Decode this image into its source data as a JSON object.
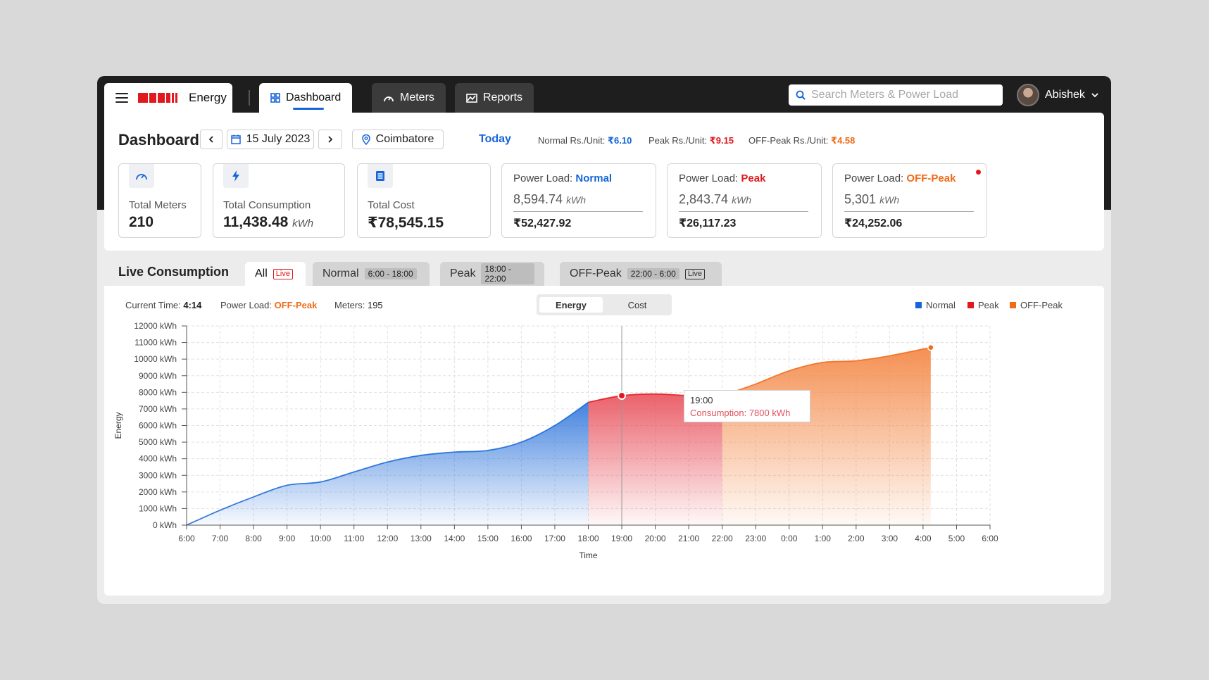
{
  "app": {
    "brand": "Energy"
  },
  "nav": {
    "tabs": [
      {
        "label": "Dashboard",
        "icon": "grid-icon",
        "active": true
      },
      {
        "label": "Meters",
        "icon": "gauge-icon",
        "active": false
      },
      {
        "label": "Reports",
        "icon": "chart-image-icon",
        "active": false
      }
    ],
    "search_placeholder": "Search Meters & Power Load",
    "user": "Abishek"
  },
  "header": {
    "title": "Dashboard",
    "date": "15 July 2023",
    "location": "Coimbatore",
    "today": "Today",
    "rates": [
      {
        "label": "Normal Rs./Unit:",
        "value": "₹6.10",
        "color": "#1565d8"
      },
      {
        "label": "Peak Rs./Unit:",
        "value": "₹9.15",
        "color": "#e0191e"
      },
      {
        "label": "OFF-Peak Rs./Unit:",
        "value": "₹4.58",
        "color": "#f06a17"
      }
    ]
  },
  "cards": [
    {
      "label": "Total Meters",
      "value": "210",
      "unit": "",
      "icon": "gauge-icon"
    },
    {
      "label": "Total Consumption",
      "value": "11,438.48",
      "unit": "kWh",
      "icon": "bolt-icon"
    },
    {
      "label": "Total Cost",
      "value": "₹78,545.15",
      "unit": "",
      "icon": "document-icon"
    }
  ],
  "power_loads": [
    {
      "title": "Power Load:",
      "type": "Normal",
      "color": "#1565d8",
      "kwh": "8,594.74",
      "unit": "kWh",
      "cost": "₹52,427.92",
      "live": false
    },
    {
      "title": "Power Load:",
      "type": "Peak",
      "color": "#e0191e",
      "kwh": "2,843.74",
      "unit": "kWh",
      "cost": "₹26,117.23",
      "live": false
    },
    {
      "title": "Power Load:",
      "type": "OFF-Peak",
      "color": "#f06a17",
      "kwh": "5,301",
      "unit": "kWh",
      "cost": "₹24,252.06",
      "live": true
    }
  ],
  "live": {
    "title": "Live Consumption",
    "tabs": [
      {
        "label": "All",
        "range": "",
        "badge": "Live",
        "active": true
      },
      {
        "label": "Normal",
        "range": "6:00 - 18:00",
        "badge": "",
        "active": false
      },
      {
        "label": "Peak",
        "range": "18:00 - 22:00",
        "badge": "",
        "active": false
      },
      {
        "label": "OFF-Peak",
        "range": "22:00 - 6:00",
        "badge": "Live",
        "active": false
      }
    ],
    "meta": {
      "current_time_label": "Current Time:",
      "current_time": "4:14",
      "power_load_label": "Power Load:",
      "power_load": "OFF-Peak",
      "meters_label": "Meters:",
      "meters": "195"
    },
    "toggle": [
      "Energy",
      "Cost"
    ],
    "legend": [
      {
        "name": "Normal",
        "color": "#1565d8"
      },
      {
        "name": "Peak",
        "color": "#e0191e"
      },
      {
        "name": "OFF-Peak",
        "color": "#f06a17"
      }
    ],
    "tooltip": {
      "time": "19:00",
      "text": "Consumption: 7800 kWh"
    }
  },
  "chart_data": {
    "type": "area",
    "xlabel": "Time",
    "ylabel": "Energy",
    "x_ticks": [
      "6:00",
      "7:00",
      "8:00",
      "9:00",
      "10:00",
      "11:00",
      "12:00",
      "13:00",
      "14:00",
      "15:00",
      "16:00",
      "17:00",
      "18:00",
      "19:00",
      "20:00",
      "21:00",
      "22:00",
      "23:00",
      "0:00",
      "1:00",
      "2:00",
      "3:00",
      "4:00",
      "5:00",
      "6:00"
    ],
    "y_ticks": [
      "0 kWh",
      "1000 kWh",
      "2000 kWh",
      "3000 kWh",
      "4000 kWh",
      "5000 kWh",
      "6000 kWh",
      "7000 kWh",
      "8000 kWh",
      "9000 kWh",
      "10000 kWh",
      "11000 kWh",
      "12000 kWh"
    ],
    "ylim": [
      0,
      12000
    ],
    "x_hours_range": [
      0,
      24
    ],
    "grid": true,
    "series": [
      {
        "name": "Normal",
        "color": "#1565d8",
        "hours": [
          0,
          1,
          2,
          3,
          4,
          5,
          6,
          7,
          8,
          9,
          10,
          11,
          12
        ],
        "values": [
          0,
          900,
          1700,
          2400,
          2600,
          3200,
          3800,
          4200,
          4400,
          4500,
          5000,
          6000,
          7400
        ]
      },
      {
        "name": "Peak",
        "color": "#e0191e",
        "hours": [
          12,
          13,
          14,
          15,
          16
        ],
        "values": [
          7400,
          7800,
          7900,
          7800,
          7800
        ]
      },
      {
        "name": "OFF-Peak",
        "color": "#f06a17",
        "hours": [
          16,
          17,
          18,
          19,
          20,
          21,
          22.23
        ],
        "values": [
          7800,
          8500,
          9300,
          9800,
          9900,
          10200,
          10700
        ]
      }
    ]
  }
}
